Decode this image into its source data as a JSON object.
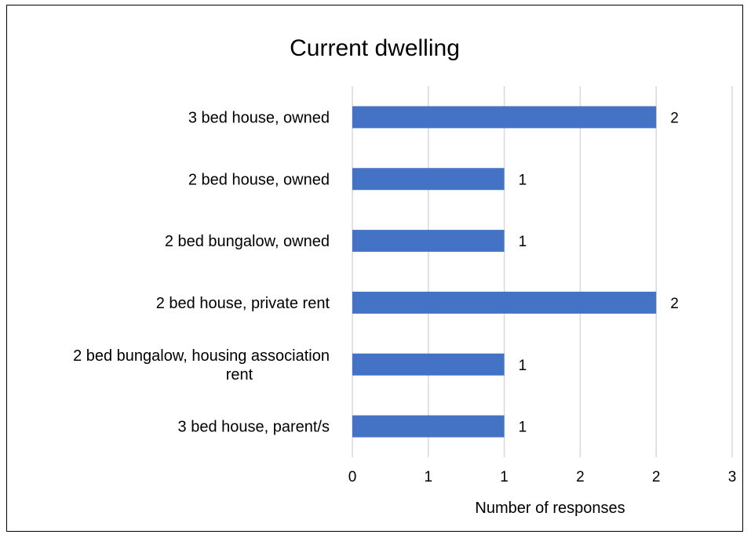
{
  "chart_data": {
    "type": "bar",
    "orientation": "horizontal",
    "title": "Current dwelling",
    "xlabel": "Number of responses",
    "ylabel": "",
    "categories": [
      [
        "3 bed house, owned"
      ],
      [
        "2 bed house, owned"
      ],
      [
        "2 bed bungalow, owned"
      ],
      [
        "2 bed house, private rent"
      ],
      [
        "2 bed bungalow, housing association",
        "rent"
      ],
      [
        "3 bed house, parent/s"
      ]
    ],
    "values": [
      2,
      1,
      1,
      2,
      1,
      1
    ],
    "data_labels": [
      "2",
      "1",
      "1",
      "2",
      "1",
      "1"
    ],
    "x_tick_labels": [
      "0",
      "1",
      "1",
      "2",
      "2",
      "3"
    ],
    "xlim": [
      0,
      2.5
    ],
    "grid": "vertical",
    "legend": "none",
    "bar_color": "#4472c4",
    "grid_color": "#d9d9d9"
  }
}
